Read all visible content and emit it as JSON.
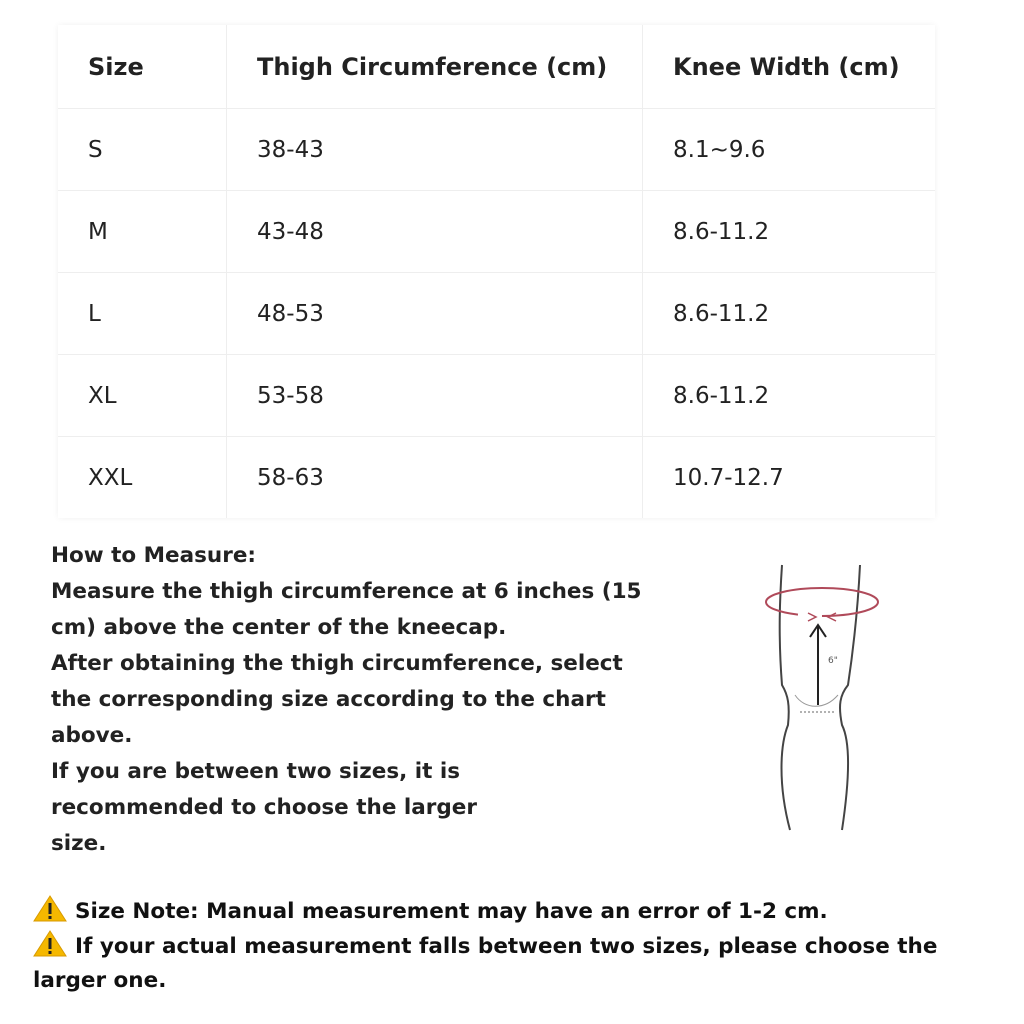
{
  "table": {
    "header": [
      "Size",
      "Thigh Circumference (cm)",
      "Knee Width (cm)"
    ],
    "rows": [
      [
        "S",
        "38-43",
        "8.1~9.6"
      ],
      [
        "M",
        "43-48",
        "8.6-11.2"
      ],
      [
        "L",
        "48-53",
        "8.6-11.2"
      ],
      [
        "XL",
        "53-58",
        "8.6-11.2"
      ],
      [
        "XXL",
        "58-63",
        "10.7-12.7"
      ]
    ]
  },
  "instructions": {
    "title": "How to Measure:",
    "paragraphs": [
      "Measure the thigh circumference at 6 inches (15 cm) above the center of the kneecap.",
      "After obtaining the thigh circumference, select the corresponding size according to the chart above.",
      "If you are between two sizes, it is recommended to choose the larger size."
    ]
  },
  "diagram": {
    "label": "6\""
  },
  "notes": [
    "Size Note: Manual measurement may have an error of 1-2 cm.",
    "If your actual measurement falls between two sizes, please choose the larger one."
  ]
}
